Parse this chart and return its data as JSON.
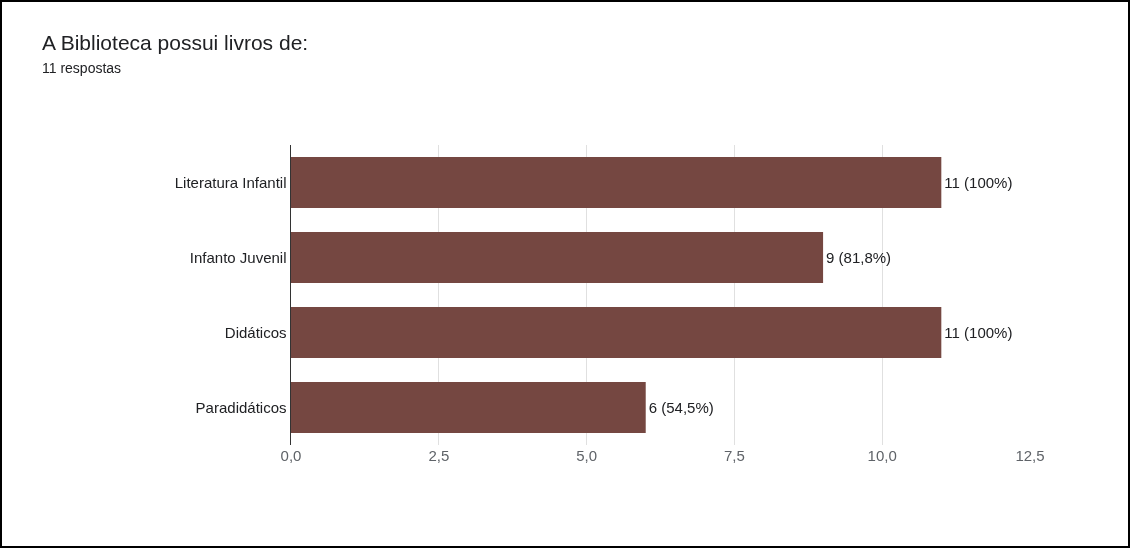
{
  "chart_data": {
    "type": "bar",
    "orientation": "horizontal",
    "title": "A Biblioteca possui livros de:",
    "subtitle": "11 respostas",
    "categories": [
      "Literatura Infantil",
      "Infanto Juvenil",
      "Didáticos",
      "Paradidáticos"
    ],
    "values": [
      11,
      9,
      11,
      6
    ],
    "value_labels": [
      "11 (100%)",
      "9 (81,8%)",
      "11 (100%)",
      "6 (54,5%)"
    ],
    "color": "#754741",
    "xlim": [
      0,
      12.5
    ],
    "xticks": [
      {
        "value": 0,
        "label": "0,0"
      },
      {
        "value": 2.5,
        "label": "2,5"
      },
      {
        "value": 5,
        "label": "5,0"
      },
      {
        "value": 7.5,
        "label": "7,5"
      },
      {
        "value": 10,
        "label": "10,0"
      },
      {
        "value": 12.5,
        "label": "12,5"
      }
    ],
    "grid": "x"
  }
}
